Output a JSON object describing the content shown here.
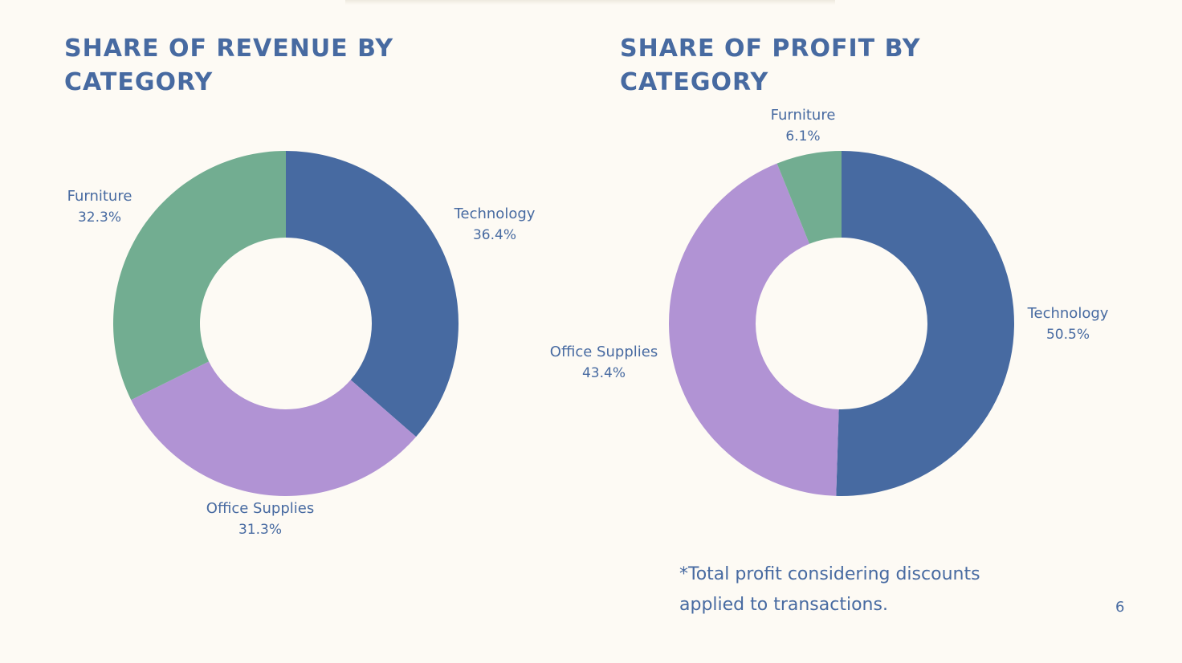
{
  "chart_data": [
    {
      "type": "pie",
      "title": "Share of Revenue by Category",
      "categories": [
        "Technology",
        "Office Supplies",
        "Furniture"
      ],
      "values": [
        36.4,
        31.3,
        32.3
      ],
      "labels": [
        "36.4%",
        "31.3%",
        "32.3%"
      ],
      "colors": [
        "#476aa1",
        "#b193d4",
        "#72ad91"
      ],
      "donut": true
    },
    {
      "type": "pie",
      "title": "Share of Profit by Category",
      "categories": [
        "Technology",
        "Office Supplies",
        "Furniture"
      ],
      "values": [
        50.5,
        43.4,
        6.1
      ],
      "labels": [
        "50.5%",
        "43.4%",
        "6.1%"
      ],
      "colors": [
        "#476aa1",
        "#b193d4",
        "#72ad91"
      ],
      "donut": true
    }
  ],
  "footnote": "*Total profit considering discounts applied to transactions.",
  "page_number": "6"
}
